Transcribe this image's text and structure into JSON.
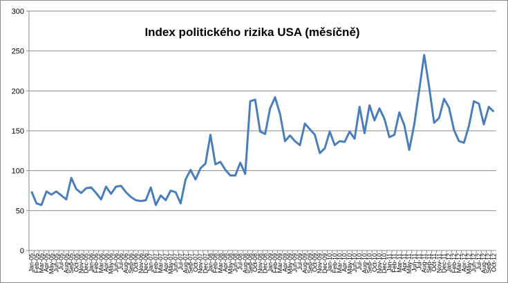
{
  "chart_data": {
    "type": "line",
    "title": "Index politického rizika USA (měsíčně)",
    "categories": [
      "Jan-05",
      "Feb-05",
      "Mar-05",
      "Apr-05",
      "May-05",
      "Jun-05",
      "Jul-05",
      "Aug-05",
      "Sep-05",
      "Oct-05",
      "Nov-05",
      "Dec-05",
      "Jan-06",
      "Feb-06",
      "Mar-06",
      "Apr-06",
      "May-06",
      "Jun-06",
      "Jul-06",
      "Aug-06",
      "Sep-06",
      "Oct-06",
      "Nov-06",
      "Dec-06",
      "Jan-07",
      "Feb-07",
      "Mar-07",
      "Apr-07",
      "May-07",
      "Jun-07",
      "Jul-07",
      "Aug-07",
      "Sep-07",
      "Oct-07",
      "Nov-07",
      "Dec-07",
      "Jan-08",
      "Feb-08",
      "Mar-08",
      "Apr-08",
      "May-08",
      "Jun-08",
      "Jul-08",
      "Aug-08",
      "Sep-08",
      "Oct-08",
      "Nov-08",
      "Dec-08",
      "Jan-09",
      "Feb-09",
      "Mar-09",
      "Apr-09",
      "May-09",
      "Jun-09",
      "Jul-09",
      "Aug-09",
      "Sep-09",
      "Oct-09",
      "Nov-09",
      "Dec-09",
      "Jan-10",
      "Feb-10",
      "Mar-10",
      "Apr-10",
      "May-10",
      "Jun-10",
      "Jul-10",
      "Aug-10",
      "Sep-10",
      "Oct-10",
      "Nov-10",
      "Dec-10",
      "Jan-11",
      "Feb-11",
      "Mar-11",
      "Apr-11",
      "May-11",
      "Jun-11",
      "Jul-11",
      "Aug-11",
      "Sep-11",
      "Oct-11",
      "Nov-11",
      "Dec-11",
      "Jan-12",
      "Feb-12",
      "Mar-12",
      "Apr-12",
      "May-12",
      "Jun-12",
      "Jul-12",
      "Aug-12",
      "Sep-12",
      "Oct-12"
    ],
    "values": [
      74,
      59,
      57,
      74,
      70,
      74,
      69,
      64,
      91,
      77,
      72,
      78,
      79,
      72,
      64,
      80,
      71,
      80,
      81,
      73,
      67,
      63,
      62,
      63,
      79,
      57,
      69,
      63,
      75,
      73,
      59,
      89,
      101,
      89,
      103,
      109,
      145,
      108,
      111,
      101,
      94,
      94,
      110,
      96,
      187,
      189,
      149,
      146,
      178,
      192,
      171,
      137,
      144,
      137,
      132,
      159,
      152,
      145,
      122,
      128,
      149,
      132,
      137,
      136,
      149,
      140,
      180,
      147,
      182,
      163,
      178,
      165,
      142,
      145,
      173,
      157,
      126,
      158,
      201,
      245,
      205,
      160,
      166,
      190,
      179,
      151,
      137,
      135,
      156,
      187,
      184,
      158,
      180,
      174
    ],
    "color": "#4a7ebb",
    "ylim": [
      0,
      300
    ],
    "yticks": [
      0,
      50,
      100,
      150,
      200,
      250,
      300
    ],
    "grid": true
  }
}
